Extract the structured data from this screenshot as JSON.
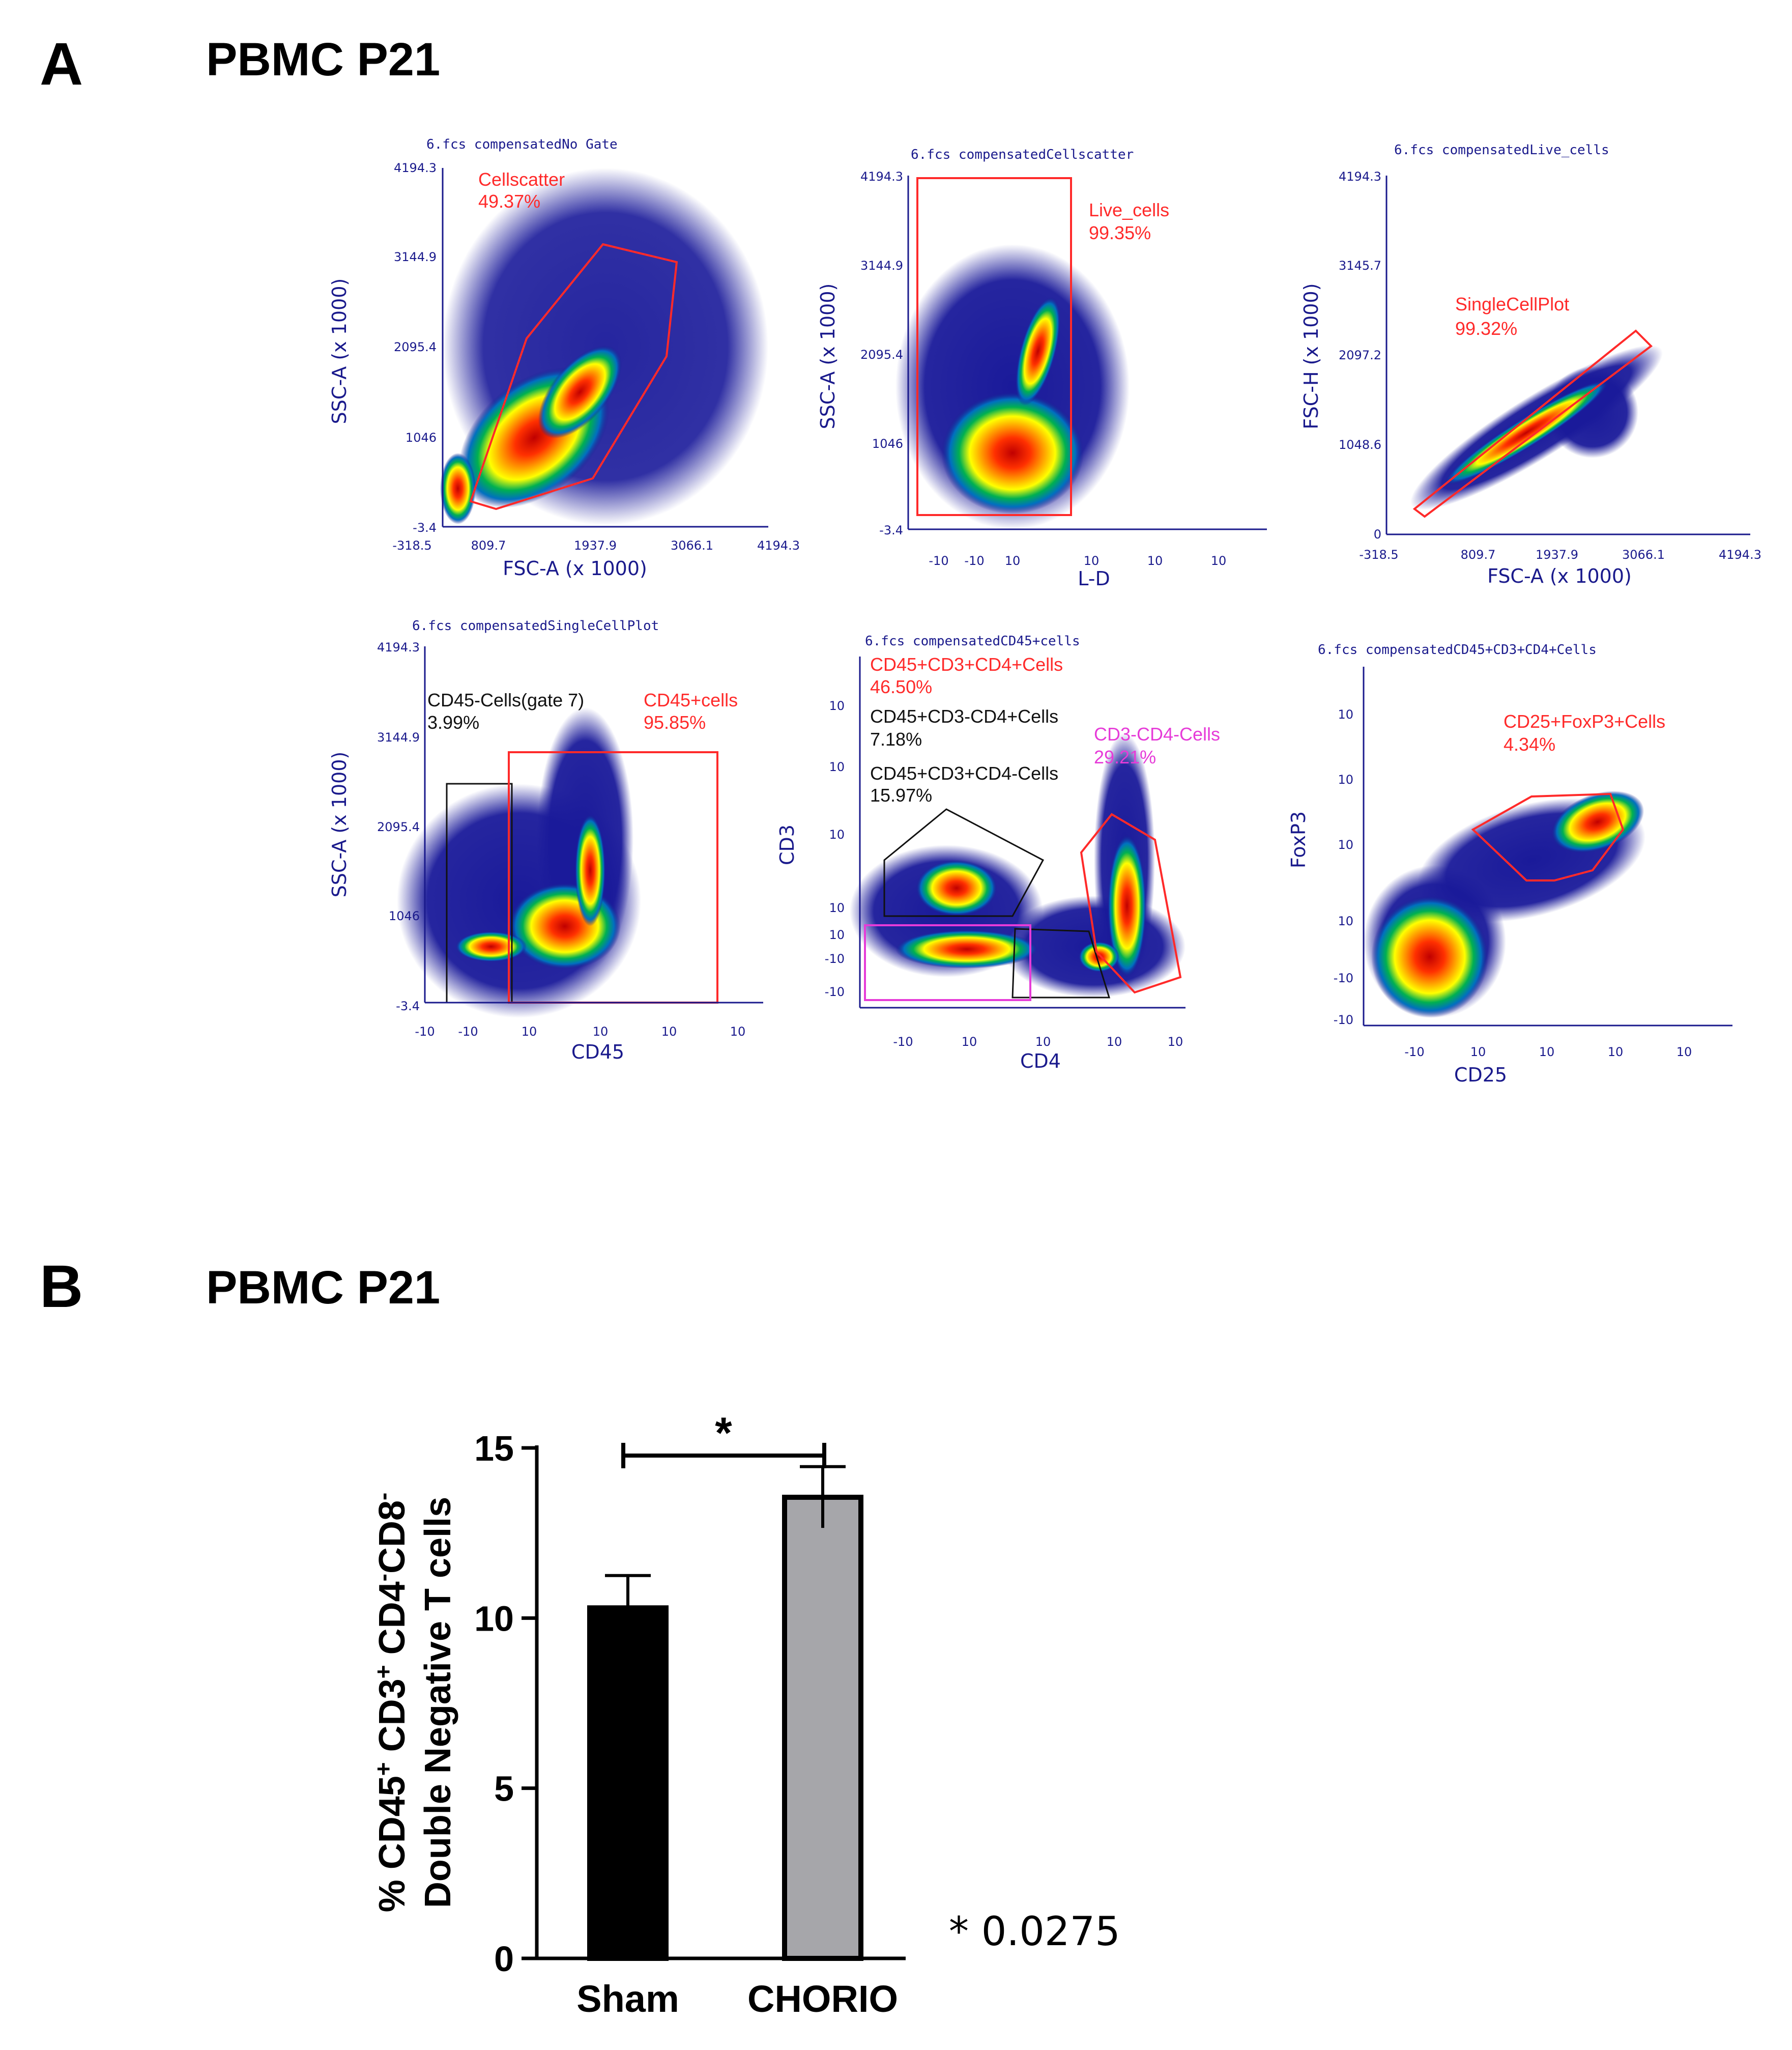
{
  "panel_a": {
    "letter": "A",
    "title": "PBMC P21",
    "plots": [
      {
        "title": "6.fcs compensatedNo Gate",
        "xlabel": "FSC-A (x 1000)",
        "ylabel": "SSC-A (x 1000)",
        "xticks": [
          "-318.5",
          "809.7",
          "1937.9",
          "3066.1",
          "4194.3"
        ],
        "yticks": [
          "4194.3",
          "3144.9",
          "2095.4",
          "1046",
          "-3.4"
        ],
        "gates": [
          {
            "name": "Cellscatter",
            "percent": "49.37%",
            "color": "#ff2a2a"
          }
        ]
      },
      {
        "title": "6.fcs compensatedCellscatter",
        "xlabel": "L-D",
        "ylabel": "SSC-A (x 1000)",
        "xticks": [
          "-10",
          "-10",
          "10",
          "10",
          "10",
          "10"
        ],
        "yticks": [
          "4194.3",
          "3144.9",
          "2095.4",
          "1046",
          "-3.4"
        ],
        "gates": [
          {
            "name": "Live_cells",
            "percent": "99.35%",
            "color": "#ff2a2a"
          }
        ]
      },
      {
        "title": "6.fcs compensatedLive_cells",
        "xlabel": "FSC-A (x 1000)",
        "ylabel": "FSC-H (x 1000)",
        "xticks": [
          "-318.5",
          "809.7",
          "1937.9",
          "3066.1",
          "4194.3"
        ],
        "yticks": [
          "4194.3",
          "3145.7",
          "2097.2",
          "1048.6",
          "0"
        ],
        "gates": [
          {
            "name": "SingleCellPlot",
            "percent": "99.32%",
            "color": "#ff2a2a"
          }
        ]
      },
      {
        "title": "6.fcs compensatedSingleCellPlot",
        "xlabel": "CD45",
        "ylabel": "SSC-A (x 1000)",
        "xticks": [
          "-10",
          "-10",
          "10",
          "10",
          "10",
          "10"
        ],
        "yticks": [
          "4194.3",
          "3144.9",
          "2095.4",
          "1046",
          "-3.4"
        ],
        "gates": [
          {
            "name": "CD45-Cells(gate 7)",
            "percent": "3.99%",
            "color": "#111111"
          },
          {
            "name": "CD45+cells",
            "percent": "95.85%",
            "color": "#ff2a2a"
          }
        ]
      },
      {
        "title": "6.fcs compensatedCD45+cells",
        "xlabel": "CD4",
        "ylabel": "CD3",
        "xticks": [
          "-10",
          "10",
          "10",
          "10",
          "10"
        ],
        "yticks": [
          "10",
          "10",
          "10",
          "10",
          "10",
          "-10",
          "-10"
        ],
        "gates": [
          {
            "name": "CD45+CD3+CD4+Cells",
            "percent": "46.50%",
            "color": "#ff2a2a"
          },
          {
            "name": "CD45+CD3-CD4+Cells",
            "percent": "7.18%",
            "color": "#111111"
          },
          {
            "name": "CD3-CD4-Cells",
            "percent": "29.21%",
            "color": "#e63bd8"
          },
          {
            "name": "CD45+CD3+CD4-Cells",
            "percent": "15.97%",
            "color": "#111111"
          }
        ]
      },
      {
        "title": "6.fcs compensatedCD45+CD3+CD4+Cells",
        "xlabel": "CD25",
        "ylabel": "FoxP3",
        "xticks": [
          "-10",
          "10",
          "10",
          "10",
          "10"
        ],
        "yticks": [
          "10",
          "10",
          "10",
          "10",
          "-10",
          "-10"
        ],
        "gates": [
          {
            "name": "CD25+FoxP3+Cells",
            "percent": "4.34%",
            "color": "#ff2a2a"
          }
        ]
      }
    ]
  },
  "panel_b": {
    "letter": "B",
    "title": "PBMC P21",
    "pvalue_note": "* 0.0275",
    "sig_star": "*"
  },
  "chart_data": {
    "type": "bar",
    "title": "",
    "categories": [
      "Sham",
      "CHORIO"
    ],
    "values": [
      10.3,
      13.55
    ],
    "errors": [
      0.95,
      0.9
    ],
    "colors": [
      "#000000",
      "#a6a6aa"
    ],
    "ylabel_line1": "% CD45+ CD3+ CD4-CD8-",
    "ylabel_line2": "Double Negative T cells",
    "ylim": [
      0,
      15
    ],
    "yticks": [
      0,
      5,
      10,
      15
    ],
    "ytick_labels": [
      "0",
      "5",
      "10",
      "15"
    ],
    "xlabel": ""
  }
}
